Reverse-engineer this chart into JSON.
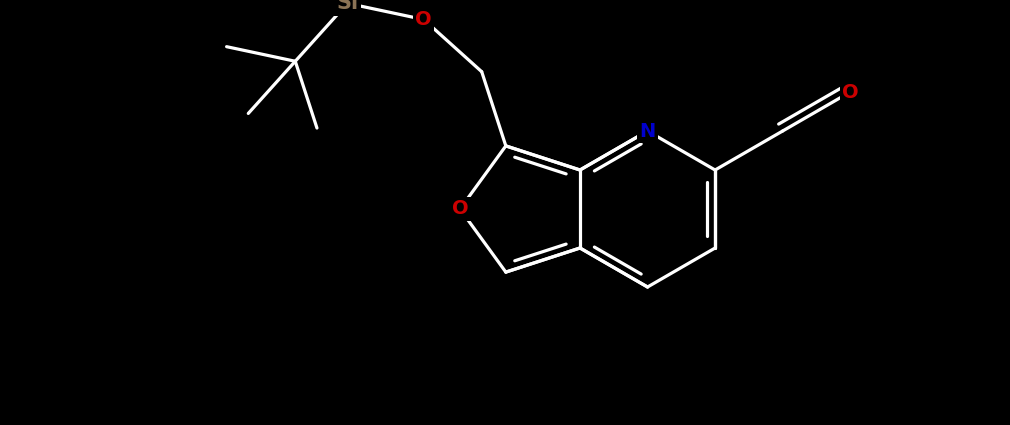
{
  "bg_color": "#000000",
  "bond_color": "#ffffff",
  "N_color": "#0000cc",
  "O_color": "#cc0000",
  "Si_color": "#8B7355",
  "line_width": 2.3,
  "font_size": 14,
  "fig_width": 10.1,
  "fig_height": 4.25,
  "dpi": 100,
  "xlim": [
    0.0,
    10.1
  ],
  "ylim": [
    0.0,
    4.25
  ]
}
